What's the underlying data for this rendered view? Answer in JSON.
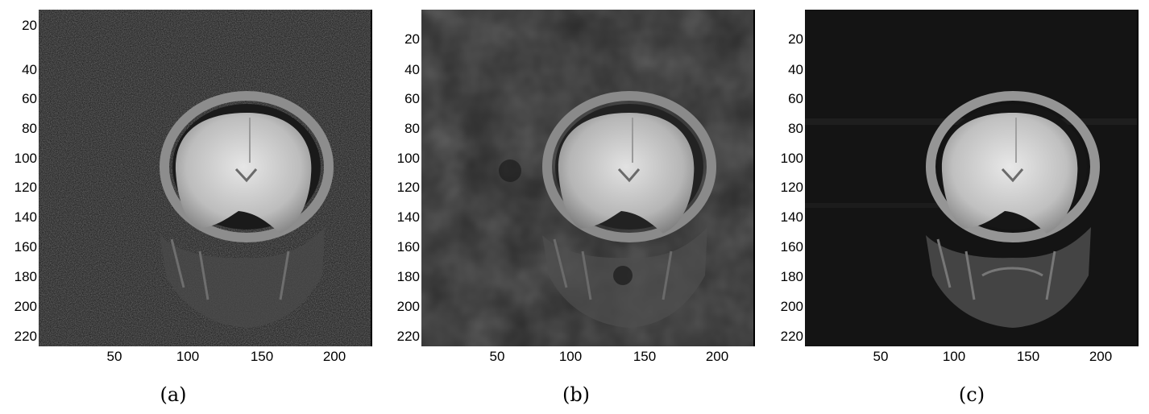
{
  "panels": [
    {
      "caption": "(a)",
      "style": "noisy"
    },
    {
      "caption": "(b)",
      "style": "blurred"
    },
    {
      "caption": "(c)",
      "style": "clean"
    }
  ],
  "y_ticks": [
    "20",
    "40",
    "60",
    "80",
    "100",
    "120",
    "140",
    "160",
    "180",
    "200",
    "220"
  ],
  "x_ticks": [
    "50",
    "100",
    "150",
    "200"
  ],
  "subject": "coronal MRI brain slice"
}
